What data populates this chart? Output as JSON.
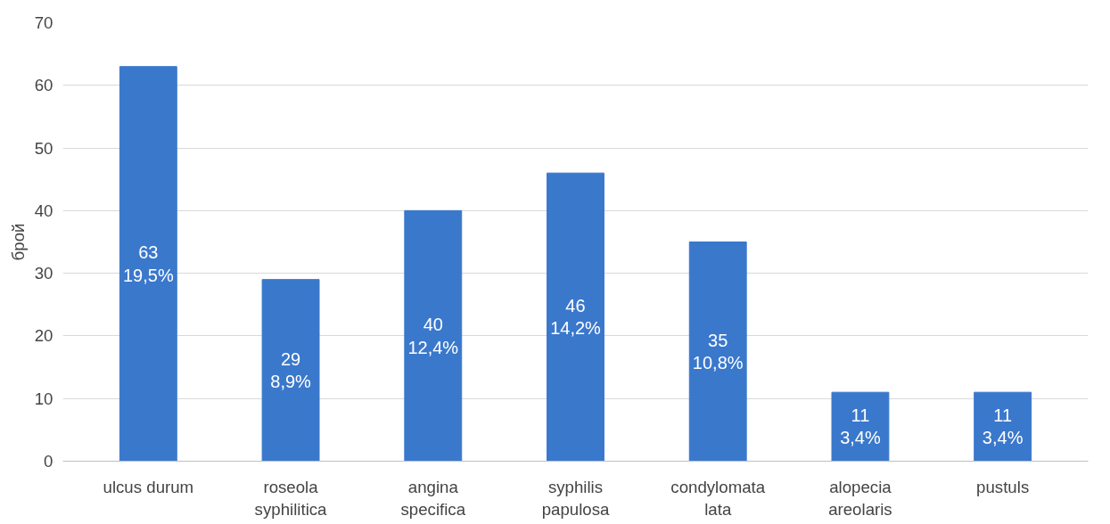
{
  "chart_data": {
    "type": "bar",
    "ylabel": "брой",
    "categories": [
      "ulcus durum",
      "roseola\nsyphilitica",
      "angina\nspecifica",
      "syphilis\npapulosa",
      "condylomata\nlata",
      "alopecia\nareolaris",
      "pustuls"
    ],
    "values": [
      63,
      29,
      40,
      46,
      35,
      11,
      11
    ],
    "value_labels": [
      "63\n19,5%",
      "29\n8,9%",
      "40\n12,4%",
      "46\n14,2%",
      "35\n10,8%",
      "11\n3,4%",
      "11\n3,4%"
    ],
    "color": "#3a78cc",
    "ylim": [
      0,
      70
    ],
    "yticks": [
      0,
      10,
      20,
      30,
      40,
      50,
      60,
      70
    ],
    "grid": "y"
  }
}
